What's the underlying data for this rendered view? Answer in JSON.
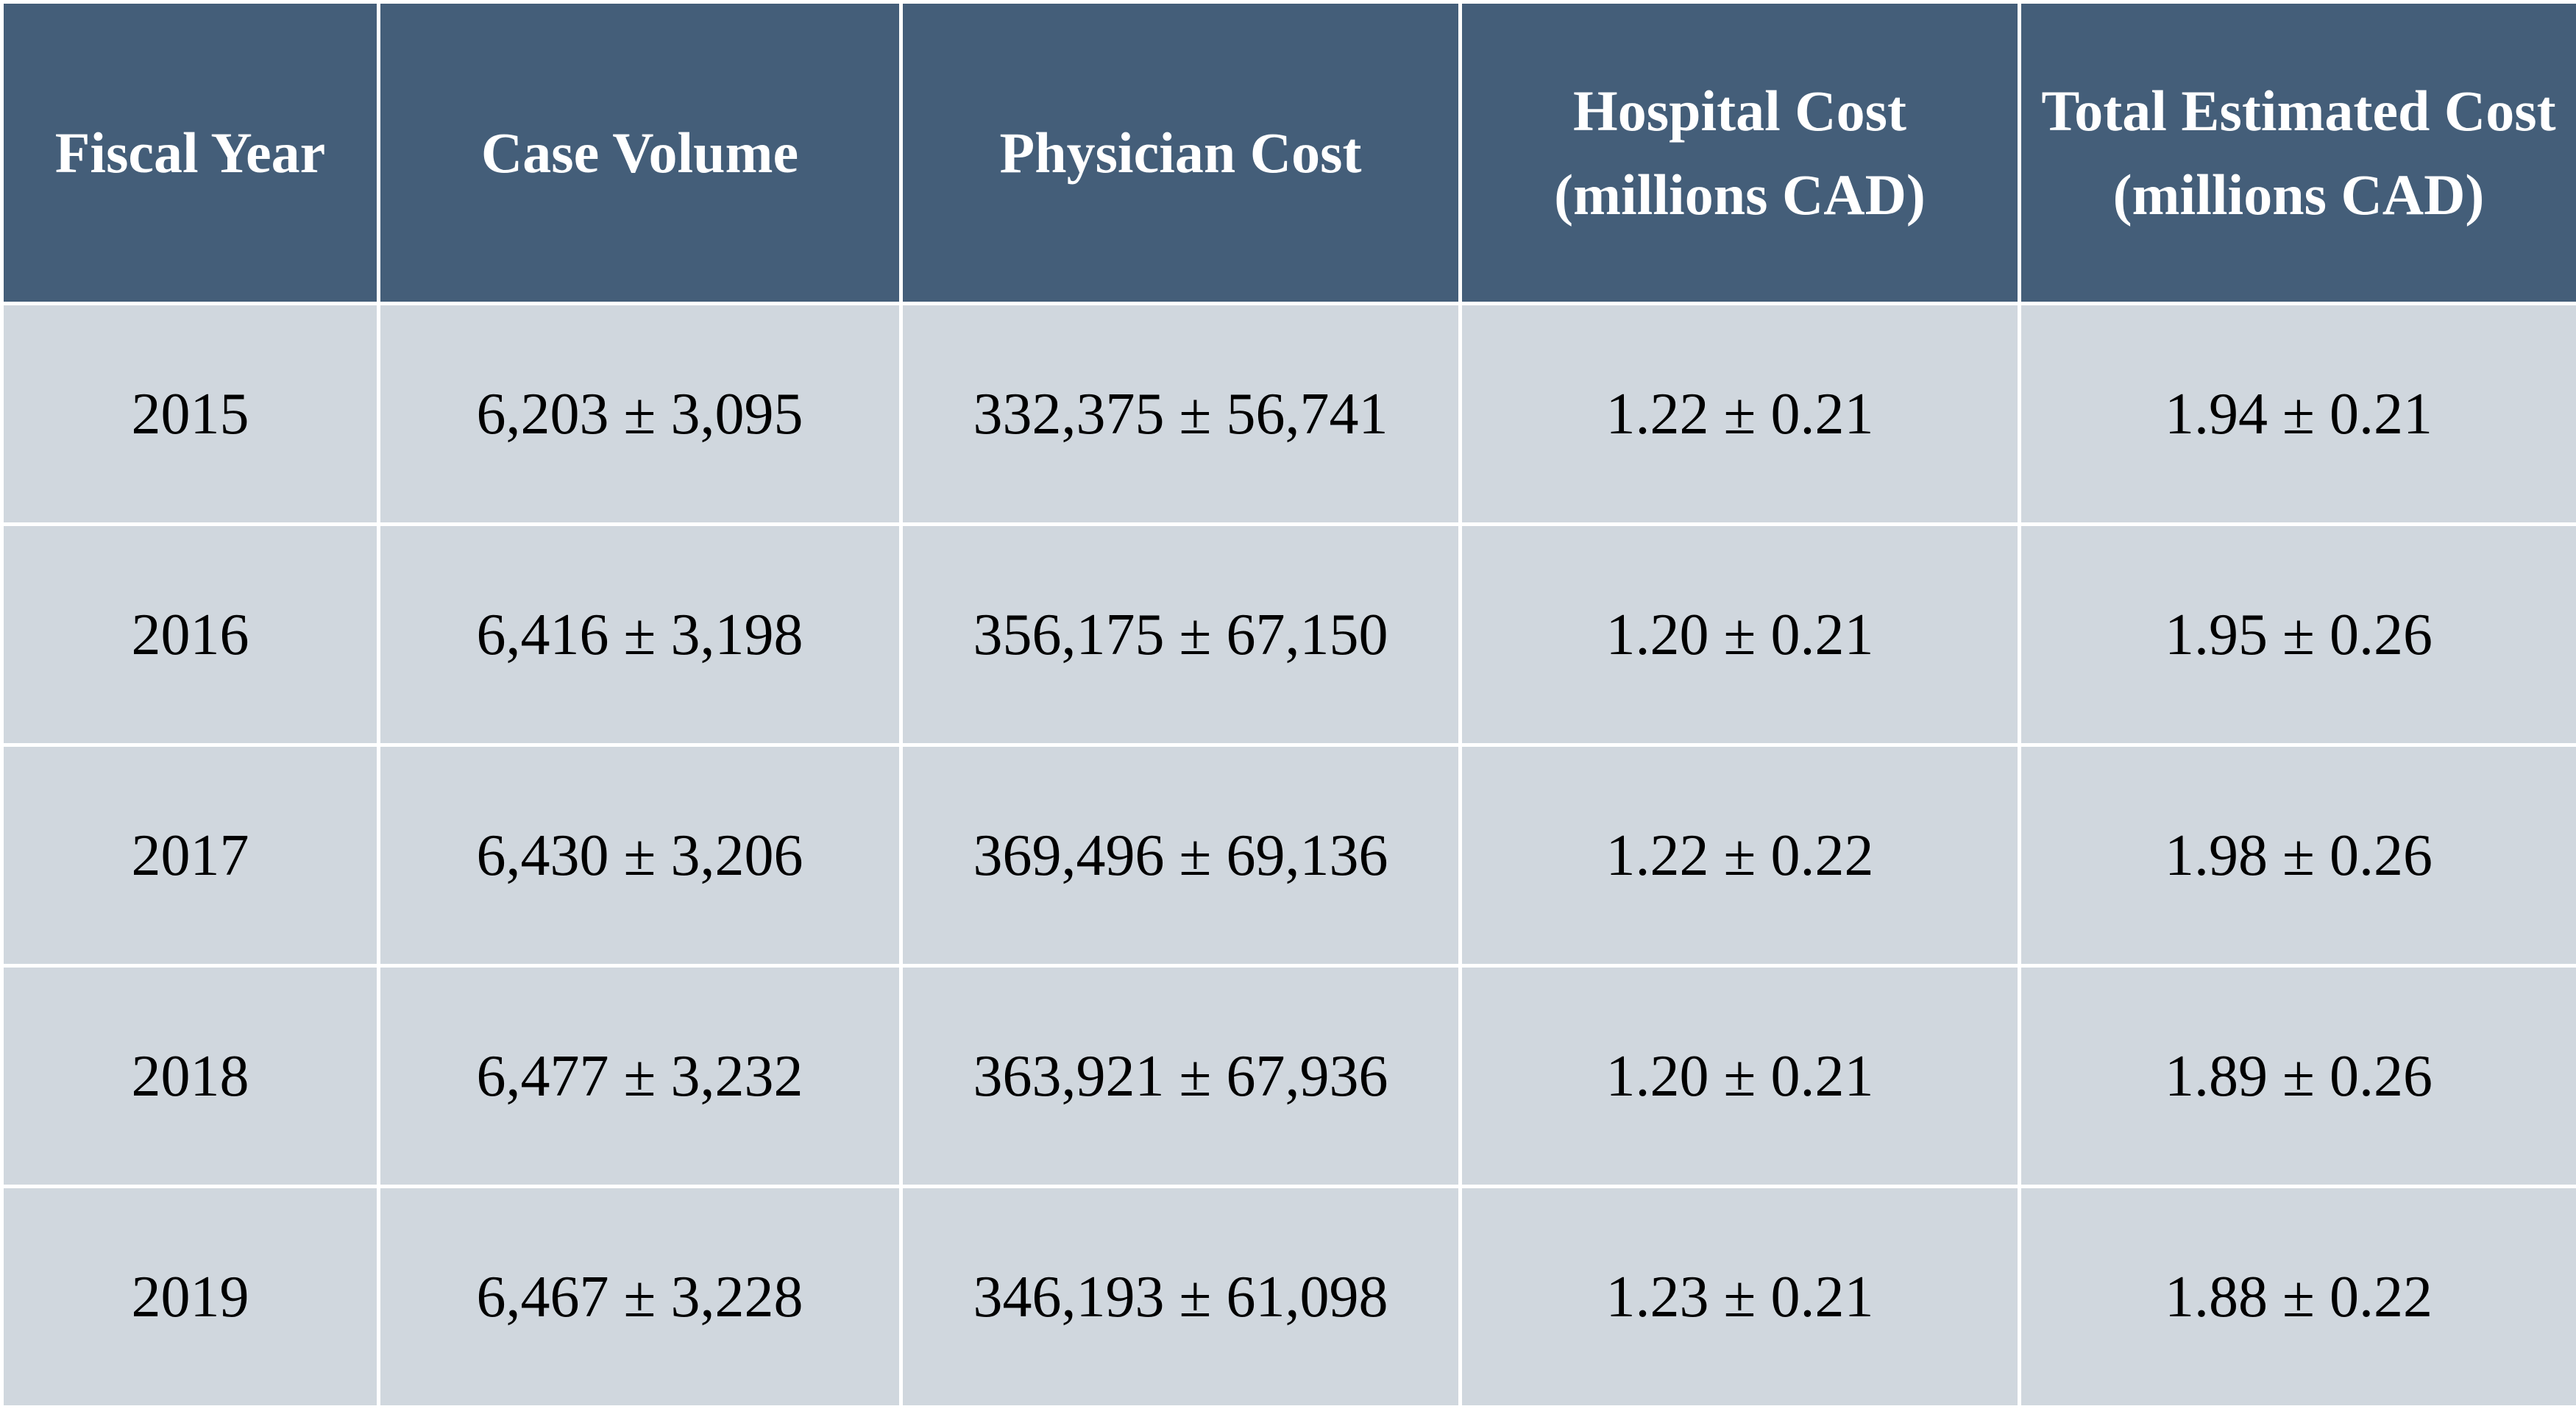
{
  "table": {
    "headers": [
      "Fiscal Year",
      "Case Volume",
      "Physician Cost",
      "Hospital Cost (millions CAD)",
      "Total Estimated Cost (millions CAD)"
    ],
    "rows": [
      [
        "2015",
        "6,203 ± 3,095",
        "332,375 ± 56,741",
        "1.22 ± 0.21",
        "1.94 ± 0.21"
      ],
      [
        "2016",
        "6,416 ± 3,198",
        "356,175 ± 67,150",
        "1.20 ± 0.21",
        "1.95 ± 0.26"
      ],
      [
        "2017",
        "6,430 ± 3,206",
        "369,496 ± 69,136",
        "1.22 ± 0.22",
        "1.98 ± 0.26"
      ],
      [
        "2018",
        "6,477 ± 3,232",
        "363,921 ± 67,936",
        "1.20 ± 0.21",
        "1.89 ± 0.26"
      ],
      [
        "2019",
        "6,467 ± 3,228",
        "346,193 ± 61,098",
        "1.23 ± 0.21",
        "1.88 ± 0.22"
      ]
    ]
  },
  "colors": {
    "header_bg": "#445e79",
    "header_text": "#ffffff",
    "cell_bg": "#d0d7de",
    "cell_text": "#000000",
    "grid_lines": "#ffffff"
  }
}
